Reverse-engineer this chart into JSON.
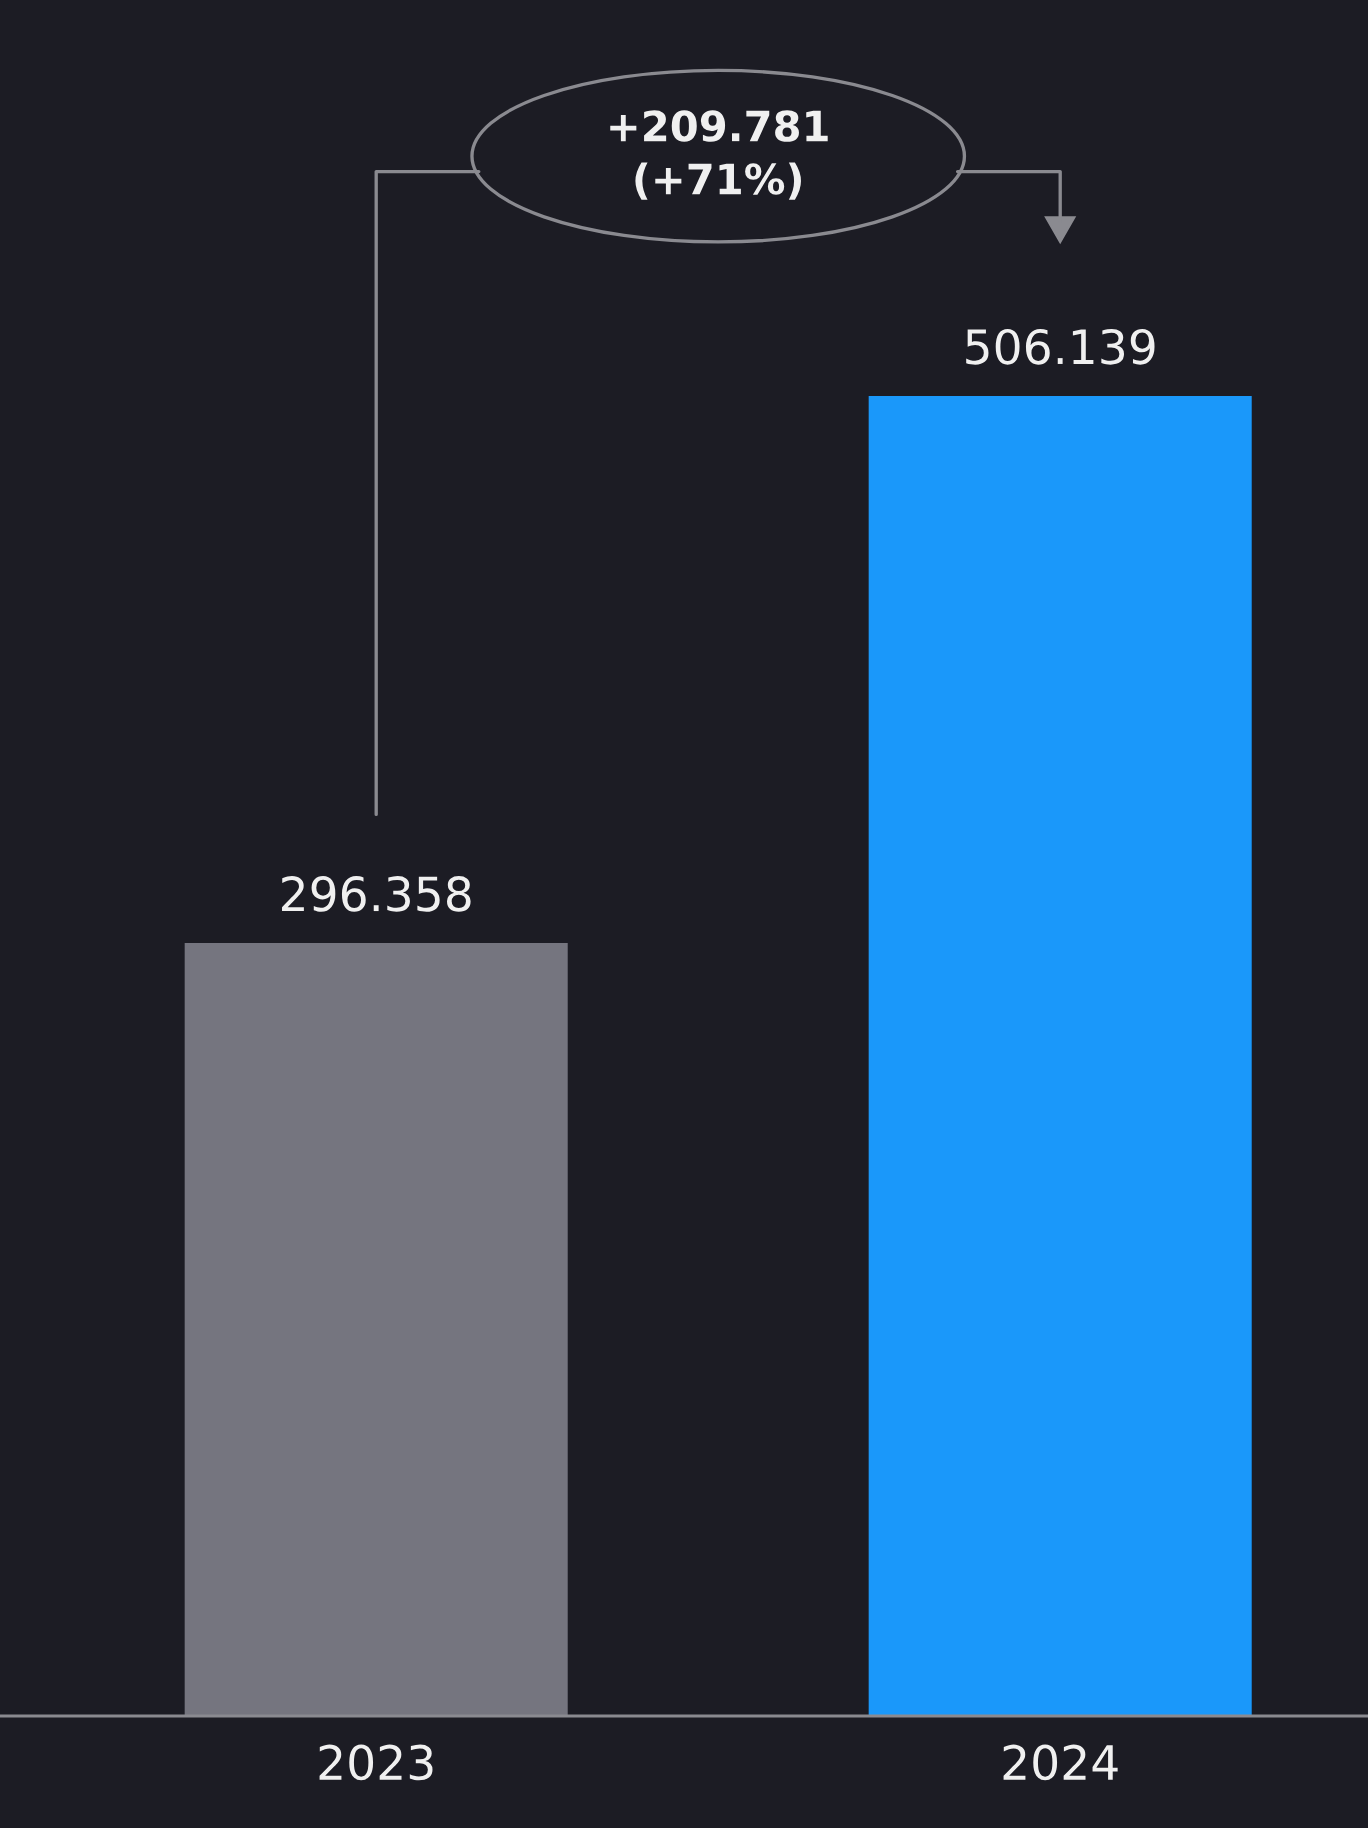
{
  "chart_data": {
    "type": "bar",
    "categories": [
      "2023",
      "2024"
    ],
    "values": [
      296.358,
      506.139
    ],
    "colors": [
      "#75757f",
      "#1a98fa"
    ],
    "data_labels": true,
    "annotations": [
      "+209.781\n(+71%)"
    ]
  }
}
